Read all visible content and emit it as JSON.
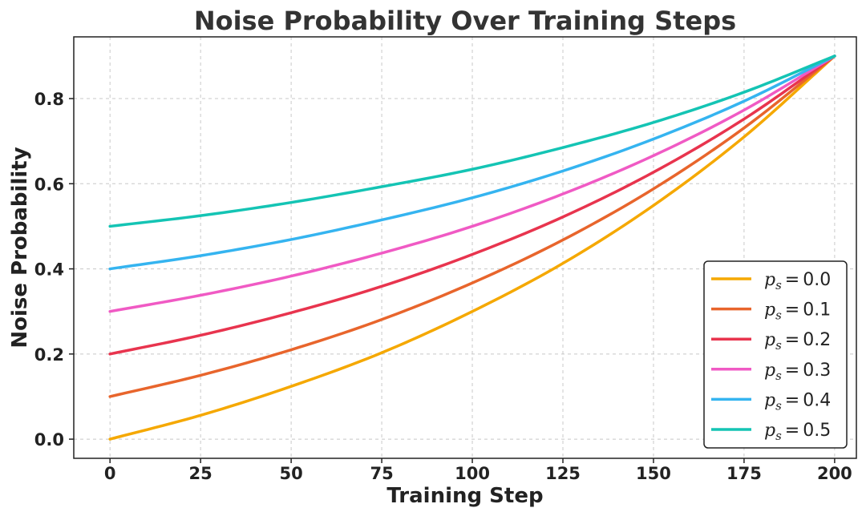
{
  "chart_data": {
    "type": "line",
    "title": "Noise Probability Over Training Steps",
    "xlabel": "Training Step",
    "ylabel": "Noise Probability",
    "xlim": [
      -10,
      206
    ],
    "ylim": [
      -0.045,
      0.945
    ],
    "xticks": [
      0,
      25,
      50,
      75,
      100,
      125,
      150,
      175,
      200
    ],
    "xtick_labels": [
      "0",
      "25",
      "50",
      "75",
      "100",
      "125",
      "150",
      "175",
      "200"
    ],
    "yticks": [
      0.0,
      0.2,
      0.4,
      0.6,
      0.8
    ],
    "ytick_labels": [
      "0.0",
      "0.2",
      "0.4",
      "0.6",
      "0.8"
    ],
    "grid": true,
    "legend_position": "bottom-right",
    "x": [
      0,
      25,
      50,
      75,
      100,
      125,
      150,
      175,
      200
    ],
    "series": [
      {
        "name": "p_s = 0.0",
        "legend_value": "0.0",
        "color": "#F5A800",
        "values": [
          0.0,
          0.056,
          0.124,
          0.203,
          0.3,
          0.413,
          0.549,
          0.71,
          0.9
        ]
      },
      {
        "name": "p_s = 0.1",
        "legend_value": "0.1",
        "color": "#E8652C",
        "values": [
          0.1,
          0.15,
          0.21,
          0.281,
          0.367,
          0.468,
          0.588,
          0.731,
          0.9
        ]
      },
      {
        "name": "p_s = 0.2",
        "legend_value": "0.2",
        "color": "#E8344E",
        "values": [
          0.2,
          0.244,
          0.297,
          0.359,
          0.434,
          0.522,
          0.627,
          0.752,
          0.9
        ]
      },
      {
        "name": "p_s = 0.3",
        "legend_value": "0.3",
        "color": "#F05AC4",
        "values": [
          0.3,
          0.338,
          0.383,
          0.437,
          0.5,
          0.576,
          0.666,
          0.773,
          0.9
        ]
      },
      {
        "name": "p_s = 0.4",
        "legend_value": "0.4",
        "color": "#35B4F0",
        "values": [
          0.4,
          0.431,
          0.469,
          0.515,
          0.567,
          0.63,
          0.705,
          0.794,
          0.9
        ]
      },
      {
        "name": "p_s = 0.5",
        "legend_value": "0.5",
        "color": "#14C4B4",
        "values": [
          0.5,
          0.525,
          0.556,
          0.593,
          0.634,
          0.685,
          0.744,
          0.815,
          0.9
        ]
      }
    ],
    "legend": {
      "symbol": "p",
      "subscript": "s",
      "equals": "="
    }
  }
}
